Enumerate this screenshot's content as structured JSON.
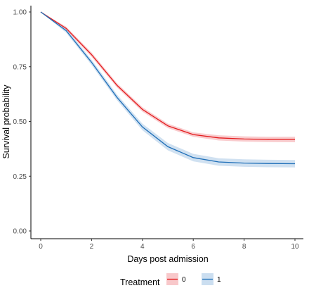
{
  "chart_data": {
    "type": "line",
    "xlabel": "Days post admission",
    "ylabel": "Survival probability",
    "xlim": [
      0,
      10
    ],
    "ylim": [
      0,
      1
    ],
    "x_ticks": [
      0,
      2,
      4,
      6,
      8,
      10
    ],
    "x_tick_labels": [
      "0",
      "2",
      "4",
      "6",
      "8",
      "10"
    ],
    "y_ticks": [
      0,
      0.25,
      0.5,
      0.75,
      1.0
    ],
    "y_tick_labels": [
      "0.00",
      "0.25",
      "0.50",
      "0.75",
      "1.00"
    ],
    "grid": false,
    "legend": {
      "title": "Treatment",
      "position": "bottom"
    },
    "x": [
      0,
      1,
      2,
      3,
      4,
      5,
      6,
      7,
      8,
      9,
      10
    ],
    "series": [
      {
        "name": "0",
        "color": "#e31a1c",
        "band_color": "#f4a3a6",
        "values": [
          1.0,
          0.925,
          0.805,
          0.665,
          0.555,
          0.48,
          0.44,
          0.425,
          0.42,
          0.418,
          0.418
        ],
        "lower": [
          1.0,
          0.917,
          0.795,
          0.655,
          0.545,
          0.47,
          0.43,
          0.413,
          0.408,
          0.406,
          0.405
        ],
        "upper": [
          1.0,
          0.933,
          0.815,
          0.675,
          0.565,
          0.49,
          0.45,
          0.437,
          0.432,
          0.43,
          0.43
        ]
      },
      {
        "name": "1",
        "color": "#1f6fb8",
        "band_color": "#a9c8e6",
        "values": [
          1.0,
          0.915,
          0.77,
          0.61,
          0.475,
          0.385,
          0.335,
          0.315,
          0.31,
          0.308,
          0.307
        ],
        "lower": [
          1.0,
          0.905,
          0.758,
          0.597,
          0.46,
          0.368,
          0.318,
          0.298,
          0.293,
          0.291,
          0.29
        ],
        "upper": [
          1.0,
          0.925,
          0.782,
          0.623,
          0.49,
          0.402,
          0.352,
          0.332,
          0.327,
          0.325,
          0.324
        ]
      }
    ]
  }
}
